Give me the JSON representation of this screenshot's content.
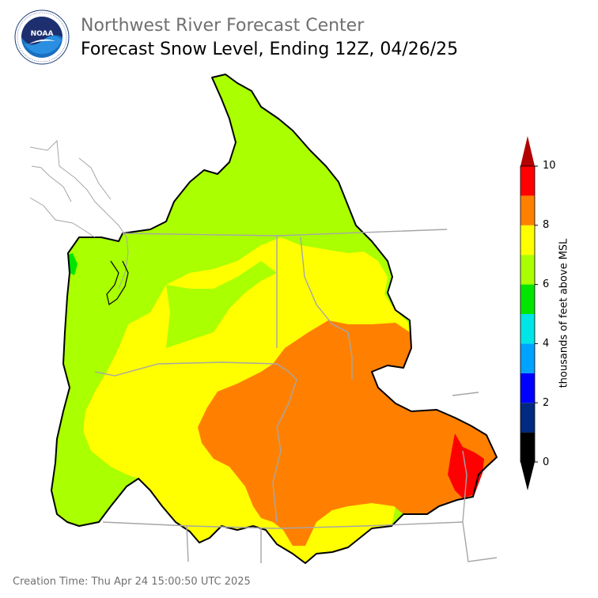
{
  "header": {
    "org_title": "Northwest River Forecast Center",
    "main_title": "Forecast Snow Level, Ending 12Z, 04/26/25"
  },
  "logo": {
    "icon": "noaa-logo-icon",
    "center_text": "NOAA",
    "ring_text": "NATIONAL OCEANIC AND ATMOSPHERIC ADMINISTRATION · U.S. DEPARTMENT OF COMMERCE"
  },
  "legend": {
    "title": "thousands of feet above MSL",
    "ticks": [
      "0",
      "2",
      "4",
      "6",
      "8",
      "10"
    ],
    "bins": [
      {
        "from": 0,
        "to": 1,
        "color": "#000000"
      },
      {
        "from": 1,
        "to": 2,
        "color": "#002a80"
      },
      {
        "from": 2,
        "to": 3,
        "color": "#0000ff"
      },
      {
        "from": 3,
        "to": 4,
        "color": "#00a2ff"
      },
      {
        "from": 4,
        "to": 5,
        "color": "#00e5e5"
      },
      {
        "from": 5,
        "to": 6,
        "color": "#00e600"
      },
      {
        "from": 6,
        "to": 7,
        "color": "#aaff00"
      },
      {
        "from": 7,
        "to": 8,
        "color": "#ffff00"
      },
      {
        "from": 8,
        "to": 9,
        "color": "#ff8000"
      },
      {
        "from": 9,
        "to": 10,
        "color": "#ff0000"
      }
    ],
    "under_color": "#000000",
    "over_color": "#b30000"
  },
  "footer": {
    "creation_time": "Creation Time: Thu Apr 24 15:00:50 UTC 2025"
  }
}
